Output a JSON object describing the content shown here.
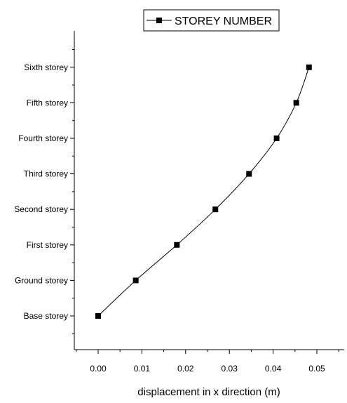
{
  "chart_data": {
    "type": "line",
    "title": "",
    "xlabel": "displacement in x direction (m)",
    "ylabel": "",
    "xlim": [
      -0.005,
      0.055
    ],
    "x_ticks": [
      "0.00",
      "0.01",
      "0.02",
      "0.03",
      "0.04",
      "0.05"
    ],
    "categories": [
      "Base storey",
      "Ground storey",
      "First storey",
      "Second storey",
      "Third storey",
      "Fourth storey",
      "Fifth storey",
      "Sixth storey"
    ],
    "series": [
      {
        "name": "STOREY NUMBER",
        "x": [
          0.0,
          0.0086,
          0.018,
          0.0268,
          0.0345,
          0.0408,
          0.0453,
          0.0482
        ],
        "y": [
          "Base storey",
          "Ground storey",
          "First storey",
          "Second storey",
          "Third storey",
          "Fourth storey",
          "Fifth storey",
          "Sixth storey"
        ],
        "marker": "square",
        "color": "#000000"
      }
    ],
    "legend_position": "top-right",
    "grid": false
  }
}
